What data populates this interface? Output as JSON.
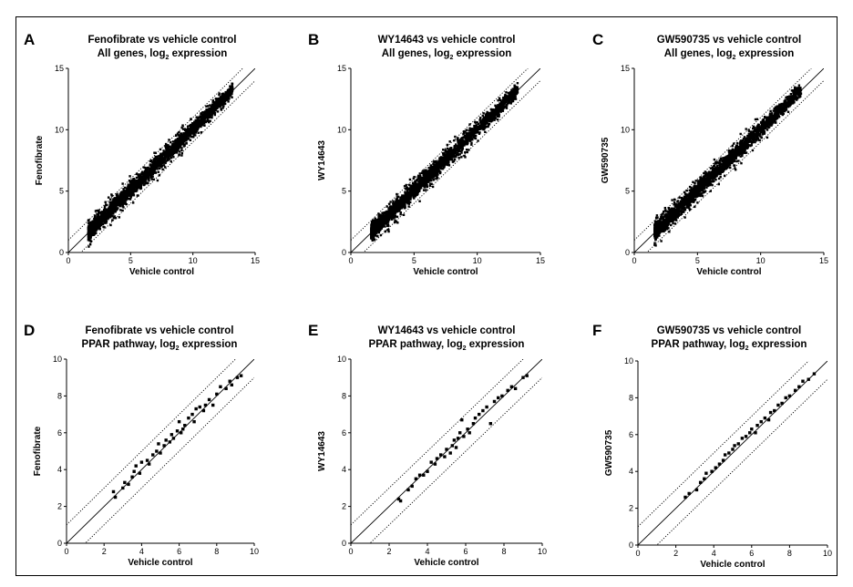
{
  "figure": {
    "description_note": "Six scatter plots comparing log2 expression in PPAR agonist treatments against vehicle control",
    "colors": {
      "points": "#000000",
      "axes": "#000000",
      "diagonal": "#000000",
      "fold_lines": "#000000",
      "frame": "#000000"
    }
  },
  "chart_data": [
    {
      "type": "scatter",
      "panel_label": "A",
      "title_line1": "Fenofibrate vs vehicle control",
      "title_line2_prefix": "All genes, log",
      "title_line2_sub": "2",
      "title_line2_suffix": " expression",
      "xlabel": "Vehicle control",
      "ylabel": "Fenofibrate",
      "xlim": [
        0,
        15
      ],
      "ylim": [
        0,
        15
      ],
      "xticks": [
        0,
        5,
        10,
        15
      ],
      "yticks": [
        0,
        5,
        10,
        15
      ],
      "reference_lines": {
        "identity": "y = x",
        "fold_bands": "y = x ± 1"
      },
      "point_cloud": {
        "x_range": [
          1.6,
          13.2
        ],
        "spread": 0.35
      }
    },
    {
      "type": "scatter",
      "panel_label": "B",
      "title_line1": "WY14643 vs vehicle control",
      "title_line2_prefix": "All genes, log",
      "title_line2_sub": "2",
      "title_line2_suffix": " expression",
      "xlabel": "Vehicle control",
      "ylabel": "WY14643",
      "xlim": [
        0,
        15
      ],
      "ylim": [
        0,
        15
      ],
      "xticks": [
        0,
        5,
        10,
        15
      ],
      "yticks": [
        0,
        5,
        10,
        15
      ],
      "reference_lines": {
        "identity": "y = x",
        "fold_bands": "y = x ± 1"
      },
      "point_cloud": {
        "x_range": [
          1.6,
          13.2
        ],
        "spread": 0.35
      }
    },
    {
      "type": "scatter",
      "panel_label": "C",
      "title_line1": "GW590735 vs vehicle control",
      "title_line2_prefix": "All genes, log",
      "title_line2_sub": "2",
      "title_line2_suffix": " expression",
      "xlabel": "Vehicle control",
      "ylabel": "GW590735",
      "xlim": [
        0,
        15
      ],
      "ylim": [
        0,
        15
      ],
      "xticks": [
        0,
        5,
        10,
        15
      ],
      "yticks": [
        0,
        5,
        10,
        15
      ],
      "reference_lines": {
        "identity": "y = x",
        "fold_bands": "y = x ± 1"
      },
      "point_cloud": {
        "x_range": [
          1.6,
          13.2
        ],
        "spread": 0.35
      }
    },
    {
      "type": "scatter",
      "panel_label": "D",
      "title_line1": "Fenofibrate vs vehicle control",
      "title_line2_prefix": "PPAR pathway, log",
      "title_line2_sub": "2",
      "title_line2_suffix": " expression",
      "xlabel": "Vehicle control",
      "ylabel": "Fenofibrate",
      "xlim": [
        0,
        10
      ],
      "ylim": [
        0,
        10
      ],
      "xticks": [
        0,
        2,
        4,
        6,
        8,
        10
      ],
      "yticks": [
        0,
        2,
        4,
        6,
        8,
        10
      ],
      "reference_lines": {
        "identity": "y = x",
        "fold_bands": "y = x ± 1"
      },
      "points": [
        [
          2.5,
          2.8
        ],
        [
          2.6,
          2.5
        ],
        [
          3.0,
          3.0
        ],
        [
          3.1,
          3.3
        ],
        [
          3.3,
          3.2
        ],
        [
          3.5,
          3.6
        ],
        [
          3.6,
          3.9
        ],
        [
          3.7,
          4.2
        ],
        [
          3.9,
          3.8
        ],
        [
          4.0,
          4.4
        ],
        [
          4.3,
          4.5
        ],
        [
          4.4,
          4.3
        ],
        [
          4.6,
          4.8
        ],
        [
          4.8,
          5.0
        ],
        [
          4.9,
          5.4
        ],
        [
          5.0,
          4.9
        ],
        [
          5.2,
          5.3
        ],
        [
          5.3,
          5.6
        ],
        [
          5.5,
          5.5
        ],
        [
          5.6,
          5.9
        ],
        [
          5.7,
          5.7
        ],
        [
          5.9,
          6.1
        ],
        [
          6.0,
          6.6
        ],
        [
          6.1,
          6.0
        ],
        [
          6.2,
          6.2
        ],
        [
          6.3,
          6.4
        ],
        [
          6.5,
          6.8
        ],
        [
          6.7,
          7.0
        ],
        [
          6.8,
          6.6
        ],
        [
          6.9,
          7.3
        ],
        [
          7.1,
          7.4
        ],
        [
          7.3,
          7.2
        ],
        [
          7.4,
          7.5
        ],
        [
          7.6,
          7.8
        ],
        [
          7.8,
          7.5
        ],
        [
          8.0,
          8.1
        ],
        [
          8.2,
          8.5
        ],
        [
          8.5,
          8.4
        ],
        [
          8.7,
          8.8
        ],
        [
          8.8,
          8.6
        ],
        [
          9.1,
          9.0
        ],
        [
          9.3,
          9.1
        ]
      ]
    },
    {
      "type": "scatter",
      "panel_label": "E",
      "title_line1": "WY14643 vs vehicle control",
      "title_line2_prefix": "PPAR pathway, log",
      "title_line2_sub": "2",
      "title_line2_suffix": " expression",
      "xlabel": "Vehicle control",
      "ylabel": "WY14643",
      "xlim": [
        0,
        10
      ],
      "ylim": [
        0,
        10
      ],
      "xticks": [
        0,
        2,
        4,
        6,
        8,
        10
      ],
      "yticks": [
        0,
        2,
        4,
        6,
        8,
        10
      ],
      "reference_lines": {
        "identity": "y = x",
        "fold_bands": "y = x ± 1"
      },
      "points": [
        [
          2.5,
          2.4
        ],
        [
          2.6,
          2.3
        ],
        [
          3.0,
          2.9
        ],
        [
          3.2,
          3.1
        ],
        [
          3.4,
          3.5
        ],
        [
          3.6,
          3.7
        ],
        [
          3.8,
          3.7
        ],
        [
          4.0,
          3.9
        ],
        [
          4.2,
          4.4
        ],
        [
          4.4,
          4.3
        ],
        [
          4.5,
          4.6
        ],
        [
          4.7,
          4.8
        ],
        [
          4.9,
          4.7
        ],
        [
          5.0,
          5.1
        ],
        [
          5.2,
          4.9
        ],
        [
          5.3,
          5.3
        ],
        [
          5.4,
          5.6
        ],
        [
          5.5,
          5.2
        ],
        [
          5.6,
          5.7
        ],
        [
          5.7,
          6.0
        ],
        [
          5.8,
          6.7
        ],
        [
          5.9,
          5.8
        ],
        [
          6.1,
          6.2
        ],
        [
          6.2,
          6.0
        ],
        [
          6.4,
          6.5
        ],
        [
          6.5,
          6.8
        ],
        [
          6.7,
          7.0
        ],
        [
          6.9,
          7.2
        ],
        [
          7.1,
          7.4
        ],
        [
          7.3,
          6.5
        ],
        [
          7.5,
          7.7
        ],
        [
          7.7,
          7.9
        ],
        [
          7.9,
          8.0
        ],
        [
          8.2,
          8.3
        ],
        [
          8.4,
          8.5
        ],
        [
          8.6,
          8.4
        ],
        [
          9.0,
          9.0
        ],
        [
          9.2,
          9.1
        ]
      ]
    },
    {
      "type": "scatter",
      "panel_label": "F",
      "title_line1": "GW590735 vs vehicle control",
      "title_line2_prefix": "PPAR pathway, log",
      "title_line2_sub": "2",
      "title_line2_suffix": " expression",
      "xlabel": "Vehicle control",
      "ylabel": "GW590735",
      "xlim": [
        0,
        10
      ],
      "ylim": [
        0,
        10
      ],
      "xticks": [
        0,
        2,
        4,
        6,
        8,
        10
      ],
      "yticks": [
        0,
        2,
        4,
        6,
        8,
        10
      ],
      "reference_lines": {
        "identity": "y = x",
        "fold_bands": "y = x ± 1"
      },
      "points": [
        [
          2.5,
          2.6
        ],
        [
          2.7,
          2.8
        ],
        [
          3.1,
          3.0
        ],
        [
          3.3,
          3.4
        ],
        [
          3.5,
          3.6
        ],
        [
          3.6,
          3.9
        ],
        [
          3.9,
          4.0
        ],
        [
          4.1,
          4.2
        ],
        [
          4.3,
          4.4
        ],
        [
          4.5,
          4.6
        ],
        [
          4.6,
          4.9
        ],
        [
          4.8,
          5.0
        ],
        [
          5.0,
          5.2
        ],
        [
          5.1,
          5.4
        ],
        [
          5.3,
          5.5
        ],
        [
          5.5,
          5.8
        ],
        [
          5.7,
          5.9
        ],
        [
          5.9,
          6.1
        ],
        [
          6.0,
          6.3
        ],
        [
          6.2,
          6.1
        ],
        [
          6.3,
          6.5
        ],
        [
          6.5,
          6.7
        ],
        [
          6.7,
          6.9
        ],
        [
          6.9,
          6.8
        ],
        [
          7.0,
          7.2
        ],
        [
          7.2,
          7.3
        ],
        [
          7.4,
          7.6
        ],
        [
          7.6,
          7.7
        ],
        [
          7.8,
          8.0
        ],
        [
          8.0,
          8.1
        ],
        [
          8.3,
          8.4
        ],
        [
          8.5,
          8.6
        ],
        [
          8.7,
          8.9
        ],
        [
          9.0,
          9.0
        ],
        [
          9.3,
          9.3
        ]
      ]
    }
  ]
}
